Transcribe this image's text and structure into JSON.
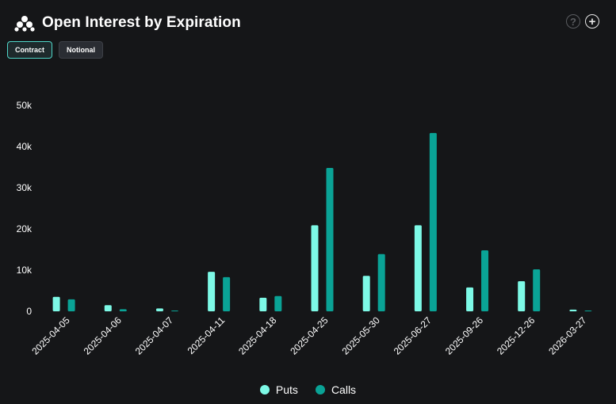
{
  "header": {
    "title": "Open Interest by Expiration"
  },
  "toggles": [
    {
      "label": "Contract",
      "active": true
    },
    {
      "label": "Notional",
      "active": false
    }
  ],
  "icons": {
    "help": "?",
    "add": "+"
  },
  "colors": {
    "puts": "#7df9e6",
    "calls": "#0aa396",
    "background": "#151618"
  },
  "chart_data": {
    "type": "bar",
    "title": "Open Interest by Expiration",
    "xlabel": "",
    "ylabel": "",
    "ylim": [
      0,
      50000
    ],
    "yticks": [
      0,
      10000,
      20000,
      30000,
      40000,
      50000
    ],
    "ytick_labels": [
      "0",
      "10k",
      "20k",
      "30k",
      "40k",
      "50k"
    ],
    "grid": false,
    "legend": "bottom-center",
    "categories": [
      "2025-04-05",
      "2025-04-06",
      "2025-04-07",
      "2025-04-11",
      "2025-04-18",
      "2025-04-25",
      "2025-05-30",
      "2025-06-27",
      "2025-09-26",
      "2025-12-26",
      "2026-03-27"
    ],
    "series": [
      {
        "name": "Puts",
        "values": [
          3500,
          1500,
          700,
          9600,
          3300,
          20900,
          8600,
          20900,
          5800,
          7300,
          400
        ]
      },
      {
        "name": "Calls",
        "values": [
          2900,
          500,
          200,
          8300,
          3700,
          34800,
          13900,
          43300,
          14800,
          10200,
          200
        ]
      }
    ]
  }
}
